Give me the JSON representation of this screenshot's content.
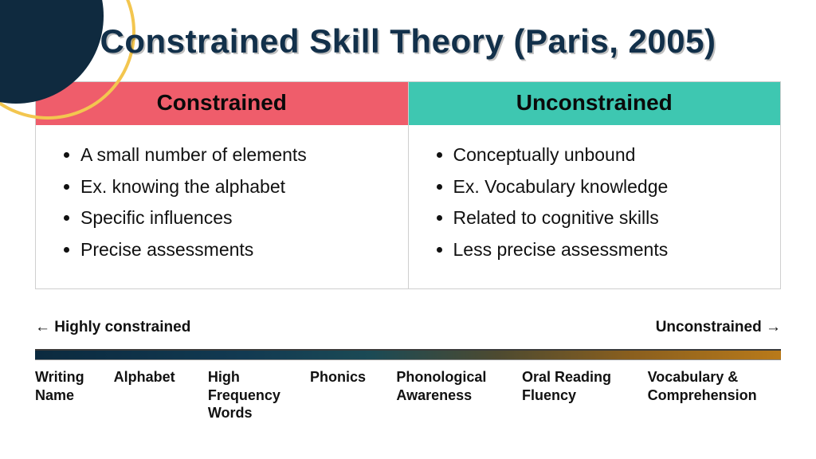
{
  "title": "Constrained Skill Theory (Paris, 2005)",
  "colors": {
    "title_color": "#12304a",
    "header_left_bg": "#ef5d6b",
    "header_right_bg": "#3ec7b1",
    "corner_fill": "#0f2a3f",
    "corner_ring": "#f3c64f",
    "border": "#cfcfcf",
    "gradient_stops": [
      "#0b2a3f",
      "#123a52",
      "#1b4a55",
      "#4d4a30",
      "#8a5f1e",
      "#b97a1a"
    ]
  },
  "table": {
    "left": {
      "header": "Constrained",
      "items": [
        "A small number of elements",
        "Ex. knowing the alphabet",
        "Specific influences",
        "Precise assessments"
      ]
    },
    "right": {
      "header": "Unconstrained",
      "items": [
        "Conceptually unbound",
        "Ex. Vocabulary knowledge",
        "Related to cognitive skills",
        "Less precise assessments"
      ]
    }
  },
  "spectrum": {
    "left_label": "← Highly constrained",
    "right_label": "Unconstrained →",
    "skills": [
      "Writing Name",
      "Alphabet",
      "High Frequency Words",
      "Phonics",
      "Phonological Awareness",
      "Oral Reading Fluency",
      "Vocabulary & Comprehension"
    ]
  }
}
